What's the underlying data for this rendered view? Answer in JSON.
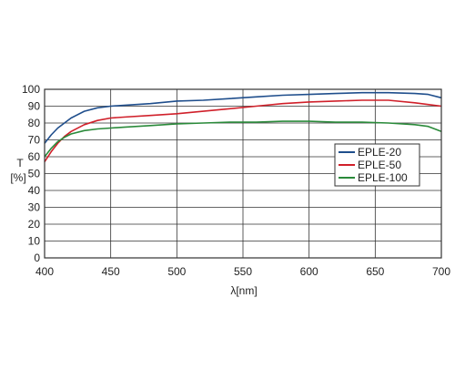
{
  "chart_data": {
    "type": "line",
    "xlabel": "λ[nm]",
    "ylabel": "T",
    "ylabel_unit": "[%]",
    "xlim": [
      400,
      700
    ],
    "ylim": [
      0,
      100
    ],
    "x_ticks": [
      400,
      450,
      500,
      550,
      600,
      650,
      700
    ],
    "y_ticks": [
      0,
      10,
      20,
      30,
      40,
      50,
      60,
      70,
      80,
      90,
      100
    ],
    "grid": true,
    "legend_position": "right",
    "x": [
      400,
      405,
      410,
      415,
      420,
      430,
      440,
      450,
      460,
      480,
      500,
      520,
      540,
      560,
      580,
      600,
      620,
      640,
      660,
      680,
      690,
      700
    ],
    "series": [
      {
        "name": "EPLE-20",
        "color": "#1f4e8c",
        "values": [
          68,
          73,
          77,
          80,
          83,
          87,
          89,
          90,
          90.5,
          91.5,
          93,
          93.5,
          94.5,
          95.5,
          96.5,
          97,
          97.5,
          98,
          98,
          97.5,
          97,
          95
        ]
      },
      {
        "name": "EPLE-50",
        "color": "#d0202a",
        "values": [
          57,
          63,
          68,
          72,
          75,
          79,
          81.5,
          83,
          83.5,
          84.5,
          85.5,
          87,
          88.5,
          90,
          91.5,
          92.5,
          93,
          93.5,
          93.5,
          92,
          91,
          90
        ]
      },
      {
        "name": "EPLE-100",
        "color": "#2a8a3a",
        "values": [
          60,
          65,
          69,
          71.5,
          73.5,
          75.5,
          76.5,
          77,
          77.5,
          78.5,
          79.5,
          80,
          80.5,
          80.5,
          81,
          81,
          80.5,
          80.5,
          80,
          79,
          78,
          75
        ]
      }
    ]
  }
}
